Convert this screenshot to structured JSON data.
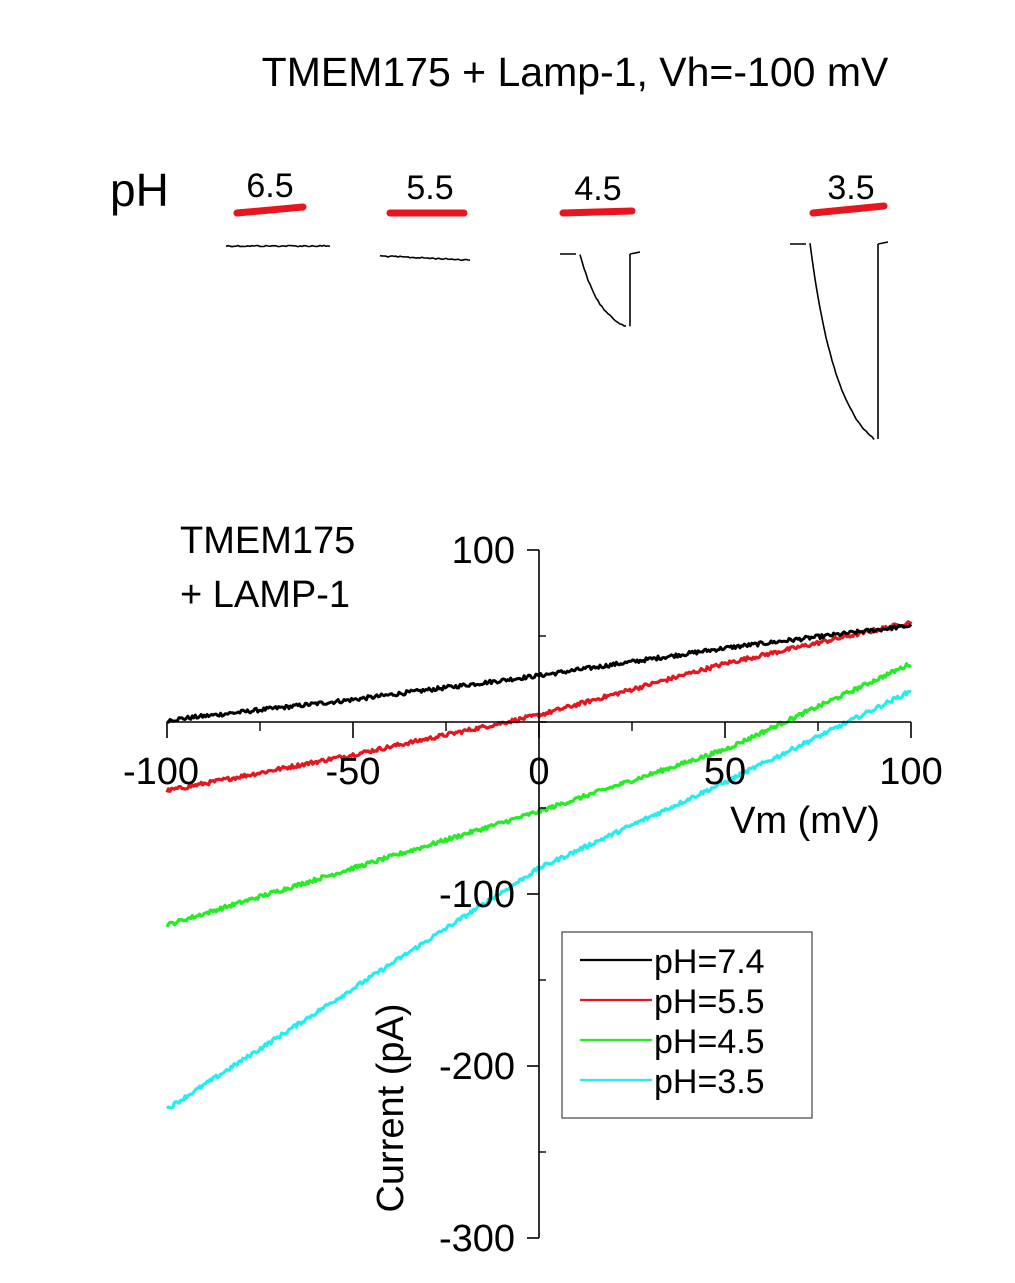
{
  "title": "TMEM175 + Lamp-1, Vh=-100 mV",
  "traces_panel": {
    "ph_prefix": "pH",
    "applications": [
      {
        "ph_label": "6.5",
        "amplitude_rel": 0.0
      },
      {
        "ph_label": "5.5",
        "amplitude_rel": 0.02
      },
      {
        "ph_label": "4.5",
        "amplitude_rel": 0.38
      },
      {
        "ph_label": "3.5",
        "amplitude_rel": 1.0
      }
    ],
    "bar_color": "#e8141e",
    "trace_color": "#000000"
  },
  "chart_data": {
    "type": "line",
    "annotation": [
      "TMEM175",
      "+ LAMP-1"
    ],
    "xlabel": "Vm (mV)",
    "ylabel": "Current (pA)",
    "xlim": [
      -100,
      100
    ],
    "ylim": [
      -300,
      100
    ],
    "x_ticks": [
      -100,
      -50,
      0,
      50,
      100
    ],
    "y_ticks": [
      100,
      -100,
      -200,
      -300
    ],
    "legend_position": "bottom-right",
    "grid": false,
    "series": [
      {
        "name": "pH=7.4",
        "color": "#000000",
        "x": [
          -100,
          -50,
          0,
          50,
          100
        ],
        "y": [
          1,
          13,
          27,
          43,
          56
        ]
      },
      {
        "name": "pH=5.5",
        "color": "#e8141e",
        "x": [
          -100,
          -50,
          0,
          50,
          100
        ],
        "y": [
          -40,
          -19,
          4,
          34,
          58
        ]
      },
      {
        "name": "pH=4.5",
        "color": "#22ee22",
        "x": [
          -100,
          -50,
          0,
          50,
          100
        ],
        "y": [
          -118,
          -85,
          -52,
          -16,
          34
        ]
      },
      {
        "name": "pH=3.5",
        "color": "#22eef0",
        "x": [
          -100,
          -50,
          0,
          50,
          100
        ],
        "y": [
          -225,
          -155,
          -85,
          -35,
          18
        ]
      }
    ]
  }
}
